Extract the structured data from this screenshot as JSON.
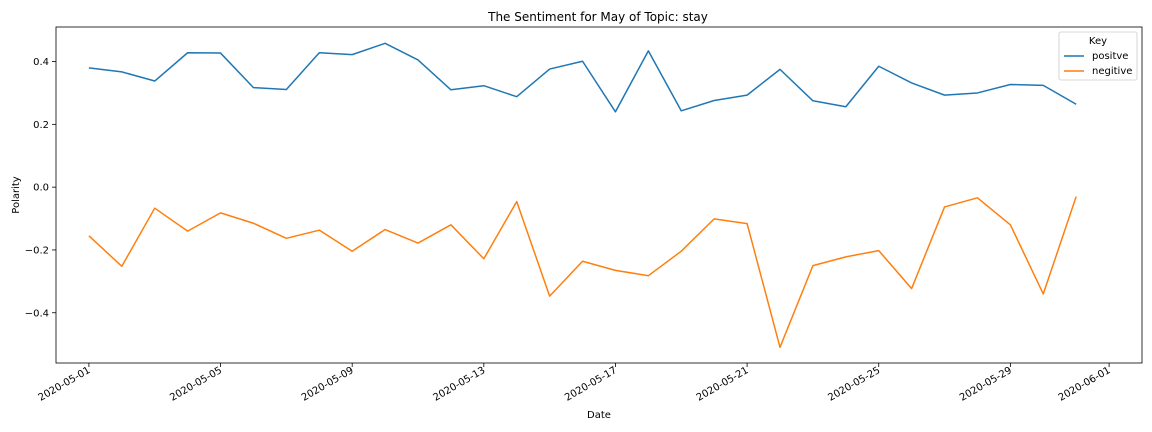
{
  "chart_data": {
    "type": "line",
    "title": "The Sentiment for May of Topic: stay",
    "xlabel": "Date",
    "ylabel": "Polarity",
    "x": [
      "2020-05-01",
      "2020-05-02",
      "2020-05-03",
      "2020-05-04",
      "2020-05-05",
      "2020-05-06",
      "2020-05-07",
      "2020-05-08",
      "2020-05-09",
      "2020-05-10",
      "2020-05-11",
      "2020-05-12",
      "2020-05-13",
      "2020-05-14",
      "2020-05-15",
      "2020-05-16",
      "2020-05-17",
      "2020-05-18",
      "2020-05-19",
      "2020-05-20",
      "2020-05-21",
      "2020-05-22",
      "2020-05-23",
      "2020-05-24",
      "2020-05-25",
      "2020-05-26",
      "2020-05-27",
      "2020-05-28",
      "2020-05-29",
      "2020-05-30",
      "2020-05-31"
    ],
    "xlim": [
      "2020-04-30",
      "2020-06-02"
    ],
    "x_ticks": [
      "2020-05-01",
      "2020-05-05",
      "2020-05-09",
      "2020-05-13",
      "2020-05-17",
      "2020-05-21",
      "2020-05-25",
      "2020-05-29",
      "2020-06-01"
    ],
    "ylim": [
      -0.56,
      0.51
    ],
    "y_ticks": [
      -0.4,
      -0.2,
      0.0,
      0.2,
      0.4
    ],
    "y_tick_labels": [
      "−0.4",
      "−0.2",
      "0.0",
      "0.2",
      "0.4"
    ],
    "grid": false,
    "legend": {
      "title": "Key",
      "placement": "top-right"
    },
    "series": [
      {
        "name": "positve",
        "color": "#1f77b4",
        "values": [
          0.38,
          0.367,
          0.338,
          0.428,
          0.427,
          0.317,
          0.311,
          0.428,
          0.422,
          0.458,
          0.405,
          0.31,
          0.323,
          0.288,
          0.376,
          0.401,
          0.24,
          0.434,
          0.243,
          0.276,
          0.293,
          0.375,
          0.275,
          0.256,
          0.385,
          0.332,
          0.293,
          0.3,
          0.327,
          0.324,
          0.264
        ]
      },
      {
        "name": "negitive",
        "color": "#ff7f0e",
        "values": [
          -0.155,
          -0.252,
          -0.067,
          -0.14,
          -0.082,
          -0.115,
          -0.163,
          -0.137,
          -0.204,
          -0.135,
          -0.178,
          -0.12,
          -0.228,
          -0.046,
          -0.347,
          -0.236,
          -0.265,
          -0.282,
          -0.204,
          -0.101,
          -0.116,
          -0.51,
          -0.25,
          -0.222,
          -0.202,
          -0.323,
          -0.063,
          -0.034,
          -0.12,
          -0.34,
          -0.03
        ]
      }
    ]
  }
}
